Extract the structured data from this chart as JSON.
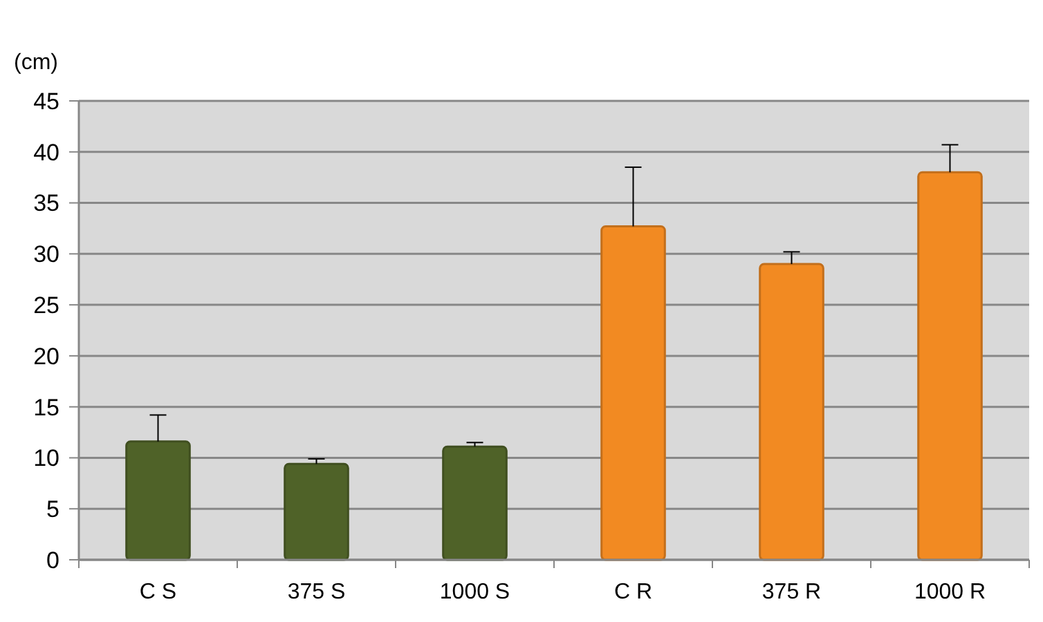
{
  "chart_data": {
    "type": "bar",
    "ylabel": "(cm)",
    "categories": [
      "C S",
      "375 S",
      "1000 S",
      "C R",
      "375 R",
      "1000 R"
    ],
    "values": [
      11.6,
      9.4,
      11.1,
      32.7,
      29.0,
      38.0
    ],
    "colors": [
      "#4f6228",
      "#4f6228",
      "#4f6228",
      "#f28a22",
      "#f28a22",
      "#f28a22"
    ],
    "errors": [
      [
        11.6,
        14.2
      ],
      [
        9.4,
        9.9
      ],
      [
        11.1,
        11.5
      ],
      [
        32.7,
        38.5
      ],
      [
        29.0,
        30.2
      ],
      [
        38.0,
        40.7
      ]
    ],
    "ylim": [
      0,
      45
    ],
    "yticks": [
      0,
      5,
      10,
      15,
      20,
      25,
      30,
      35,
      40,
      45
    ],
    "grid": "y"
  }
}
